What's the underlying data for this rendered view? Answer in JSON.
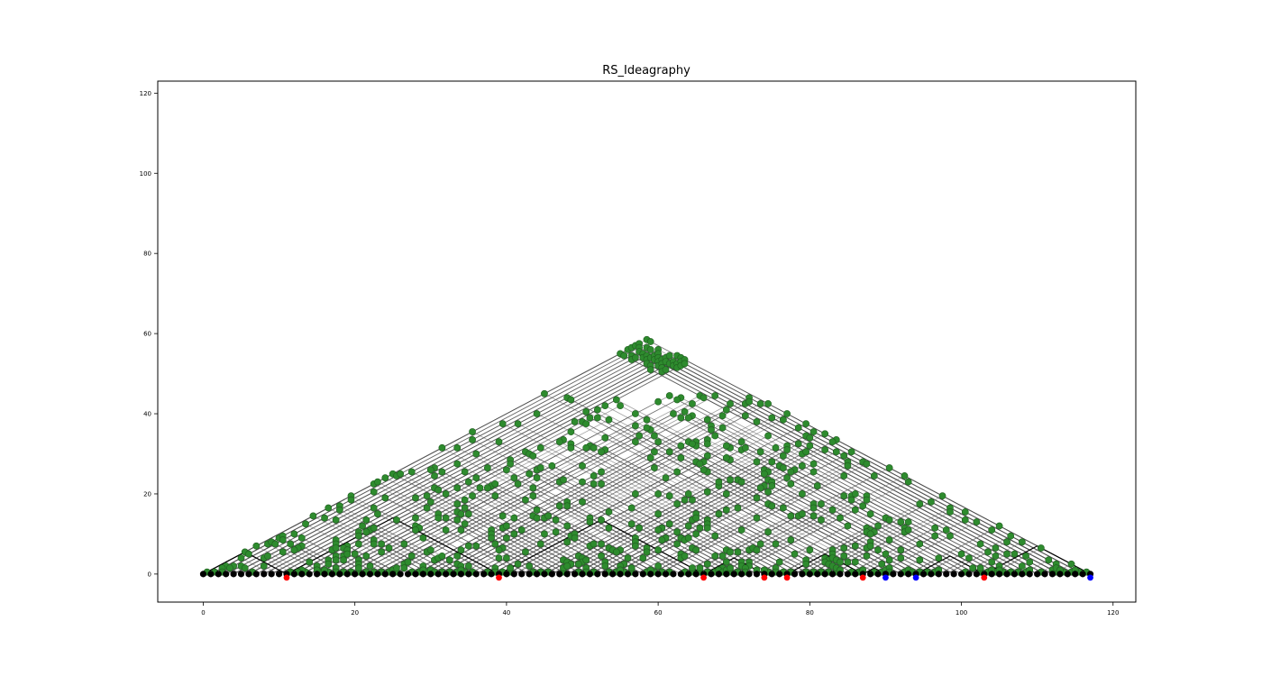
{
  "chart_data": {
    "type": "scatter",
    "title": "RS_Ideagraphy",
    "xlabel": "",
    "ylabel": "",
    "xlim": [
      -6,
      123
    ],
    "ylim": [
      -7,
      123
    ],
    "x_ticks": [
      0,
      20,
      40,
      60,
      80,
      100,
      120
    ],
    "y_ticks": [
      0,
      20,
      40,
      60,
      80,
      100,
      120
    ],
    "grid": false,
    "legend": "none",
    "n_moves": 118,
    "highlight_red_x": [
      11,
      39,
      66,
      74,
      77,
      87,
      103
    ],
    "highlight_blue_x": [
      90,
      94,
      117
    ],
    "link_count_estimate": 1400,
    "colors": {
      "move_node": "#000000",
      "backward_link_node": "#2e8b2e",
      "link_line": "#555555",
      "critical_node_red": "#ff0000",
      "critical_node_blue": "#0000ff",
      "sequence_line": "#000000"
    }
  }
}
